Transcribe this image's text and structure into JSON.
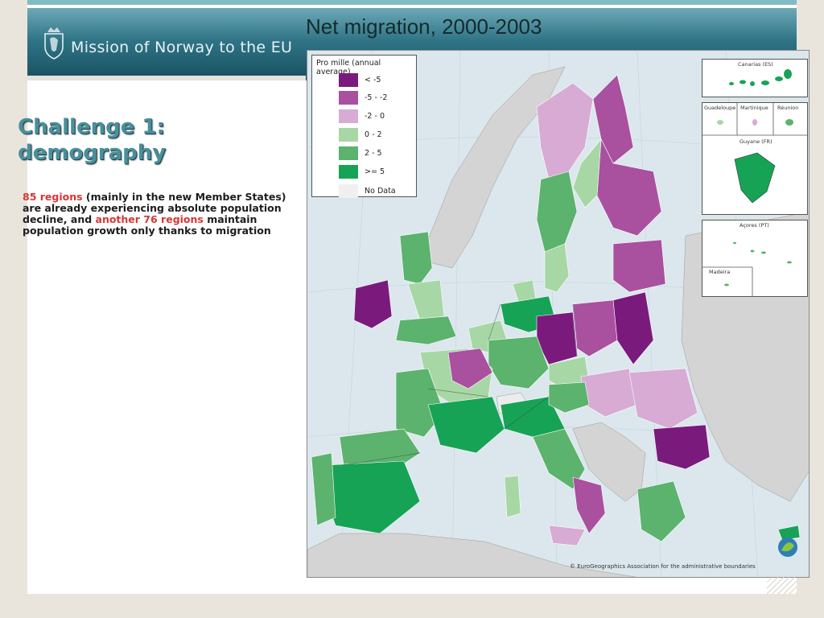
{
  "header": {
    "brand": "Mission of Norway to the EU"
  },
  "slide": {
    "heading_line1": "Challenge 1:",
    "heading_line2": "demography",
    "body_hl1": "85 regions",
    "body_text1": " (mainly in the new Member States) are already experiencing absolute population decline, and ",
    "body_hl2": "another 76 regions",
    "body_text2": " maintain population growth only thanks to migration"
  },
  "map": {
    "title": "Net migration, 2000-2003",
    "legend_title": "Pro mille (annual average)",
    "legend": [
      {
        "label": "< -5",
        "color": "#7b1a7d"
      },
      {
        "label": "-5 - -2",
        "color": "#a9509f"
      },
      {
        "label": "-2 - 0",
        "color": "#d7abd4"
      },
      {
        "label": "0 - 2",
        "color": "#a8d7a6"
      },
      {
        "label": "2 - 5",
        "color": "#5bb36d"
      },
      {
        "label": ">= 5",
        "color": "#17a356"
      },
      {
        "label": "No Data",
        "color": "#f0f0f0"
      }
    ],
    "insets": {
      "canarias": "Canarias (ES)",
      "guadeloupe": "Guadeloupe",
      "martinique": "Martinique",
      "reunion": "Réunion",
      "guyane": "Guyane (FR)",
      "acores": "Açores (PT)",
      "madeira": "Madeira"
    },
    "copyright": "© EuroGeographics Association for the administrative boundaries"
  }
}
